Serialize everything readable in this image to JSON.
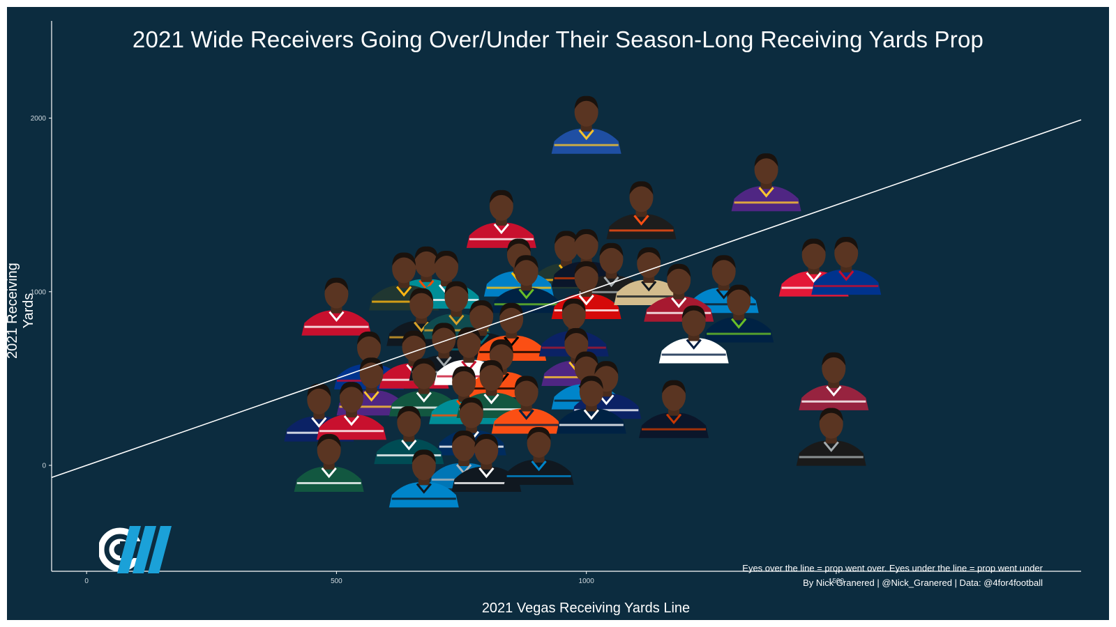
{
  "chart_data": {
    "type": "scatter",
    "title": "2021 Wide Receivers Going Over/Under Their Season-Long Receiving Yards Prop",
    "xlabel": "2021 Vegas Receiving Yards Line",
    "ylabel": "2021 Receiving Yards",
    "xlim": [
      -70,
      1990
    ],
    "ylim": [
      -610,
      2600
    ],
    "x_ticks": [
      0,
      500,
      1000,
      1500
    ],
    "y_ticks": [
      0,
      1000,
      2000
    ],
    "grid": false,
    "legend": "none",
    "reference_line": {
      "slope": 1,
      "intercept": 0
    },
    "marker": "player headshot photos",
    "points": [
      {
        "x": 1000,
        "y": 1947,
        "jersey": "#1f4fa3",
        "accent": "#f2c12e"
      },
      {
        "x": 1360,
        "y": 1616,
        "jersey": "#4f2683",
        "accent": "#ffc62f"
      },
      {
        "x": 1110,
        "y": 1455,
        "jersey": "#1d1d1d",
        "accent": "#fb4f14"
      },
      {
        "x": 830,
        "y": 1405,
        "jersey": "#c8102e",
        "accent": "#ffffff"
      },
      {
        "x": 1455,
        "y": 1125,
        "jersey": "#e31837",
        "accent": "#ffffff"
      },
      {
        "x": 1520,
        "y": 1135,
        "jersey": "#00338d",
        "accent": "#c60c30"
      },
      {
        "x": 1275,
        "y": 1030,
        "jersey": "#0085ca",
        "accent": "#101820"
      },
      {
        "x": 960,
        "y": 1170,
        "jersey": "#203731",
        "accent": "#ffb612"
      },
      {
        "x": 1000,
        "y": 1180,
        "jersey": "#0b162a",
        "accent": "#c83803"
      },
      {
        "x": 865,
        "y": 1125,
        "jersey": "#0080c6",
        "accent": "#ffc20e"
      },
      {
        "x": 1050,
        "y": 1100,
        "jersey": "#1d1d1d",
        "accent": "#a5acaf"
      },
      {
        "x": 680,
        "y": 1080,
        "jersey": "#008e97",
        "accent": "#fc4c02"
      },
      {
        "x": 635,
        "y": 1045,
        "jersey": "#203731",
        "accent": "#ffb612"
      },
      {
        "x": 720,
        "y": 1055,
        "jersey": "#008e97",
        "accent": "#ffffff"
      },
      {
        "x": 880,
        "y": 1030,
        "jersey": "#002244",
        "accent": "#69be28"
      },
      {
        "x": 1000,
        "y": 995,
        "jersey": "#d50a0a",
        "accent": "#ffffff"
      },
      {
        "x": 1125,
        "y": 1075,
        "jersey": "#d3bc8d",
        "accent": "#101820"
      },
      {
        "x": 1185,
        "y": 980,
        "jersey": "#a71930",
        "accent": "#ffffff"
      },
      {
        "x": 1305,
        "y": 860,
        "jersey": "#002244",
        "accent": "#69be28"
      },
      {
        "x": 500,
        "y": 900,
        "jersey": "#c8102e",
        "accent": "#ffffff"
      },
      {
        "x": 670,
        "y": 840,
        "jersey": "#101820",
        "accent": "#d7a22a"
      },
      {
        "x": 740,
        "y": 880,
        "jersey": "#0f4b4f",
        "accent": "#d7a22a"
      },
      {
        "x": 790,
        "y": 770,
        "jersey": "#101820",
        "accent": "#006778"
      },
      {
        "x": 850,
        "y": 755,
        "jersey": "#fb4f14",
        "accent": "#000000"
      },
      {
        "x": 975,
        "y": 780,
        "jersey": "#0b2265",
        "accent": "#a71930"
      },
      {
        "x": 1215,
        "y": 740,
        "jersey": "#ffffff",
        "accent": "#041e42"
      },
      {
        "x": 565,
        "y": 590,
        "jersey": "#00338d",
        "accent": "#c60c30"
      },
      {
        "x": 655,
        "y": 595,
        "jersey": "#c8102e",
        "accent": "#ffffff"
      },
      {
        "x": 715,
        "y": 640,
        "jersey": "#101820",
        "accent": "#a5acaf"
      },
      {
        "x": 765,
        "y": 615,
        "jersey": "#ffffff",
        "accent": "#c8102e"
      },
      {
        "x": 980,
        "y": 610,
        "jersey": "#4f2683",
        "accent": "#ffc62f"
      },
      {
        "x": 830,
        "y": 545,
        "jersey": "#fb4f14",
        "accent": "#000000"
      },
      {
        "x": 1000,
        "y": 475,
        "jersey": "#0085ca",
        "accent": "#101820"
      },
      {
        "x": 1040,
        "y": 420,
        "jersey": "#0b2265",
        "accent": "#ffffff"
      },
      {
        "x": 1495,
        "y": 470,
        "jersey": "#97233f",
        "accent": "#ffffff"
      },
      {
        "x": 570,
        "y": 440,
        "jersey": "#4f2683",
        "accent": "#ffc62f"
      },
      {
        "x": 675,
        "y": 435,
        "jersey": "#125740",
        "accent": "#ffffff"
      },
      {
        "x": 755,
        "y": 390,
        "jersey": "#008e97",
        "accent": "#fc4c02"
      },
      {
        "x": 810,
        "y": 425,
        "jersey": "#125740",
        "accent": "#ffffff"
      },
      {
        "x": 880,
        "y": 335,
        "jersey": "#fb4f14",
        "accent": "#002244"
      },
      {
        "x": 1010,
        "y": 335,
        "jersey": "#002244",
        "accent": "#ffffff"
      },
      {
        "x": 1175,
        "y": 310,
        "jersey": "#0b162a",
        "accent": "#c83803"
      },
      {
        "x": 465,
        "y": 290,
        "jersey": "#0b2265",
        "accent": "#ffffff"
      },
      {
        "x": 530,
        "y": 300,
        "jersey": "#c8102e",
        "accent": "#ffffff"
      },
      {
        "x": 770,
        "y": 210,
        "jersey": "#002c5f",
        "accent": "#ffffff"
      },
      {
        "x": 645,
        "y": 160,
        "jersey": "#004c54",
        "accent": "#ffffff"
      },
      {
        "x": 1490,
        "y": 150,
        "jersey": "#1a1a1a",
        "accent": "#a5acaf"
      },
      {
        "x": 485,
        "y": 0,
        "jersey": "#125740",
        "accent": "#ffffff"
      },
      {
        "x": 755,
        "y": 20,
        "jersey": "#0076b6",
        "accent": "#b0b7bc"
      },
      {
        "x": 800,
        "y": 0,
        "jersey": "#101820",
        "accent": "#ffffff"
      },
      {
        "x": 905,
        "y": 40,
        "jersey": "#101820",
        "accent": "#0085ca"
      },
      {
        "x": 675,
        "y": -90,
        "jersey": "#0085ca",
        "accent": "#101820"
      }
    ]
  },
  "caption": {
    "line1": "Eyes over the line = prop went over. Eyes under the line = prop went under",
    "line2": "By Nick Granered | @Nick_Granered | Data: @4for4football"
  },
  "colors": {
    "background": "#0c2c3f",
    "axis": "#ffffff",
    "logo_white": "#ffffff",
    "logo_blue": "#1ba1d8"
  }
}
